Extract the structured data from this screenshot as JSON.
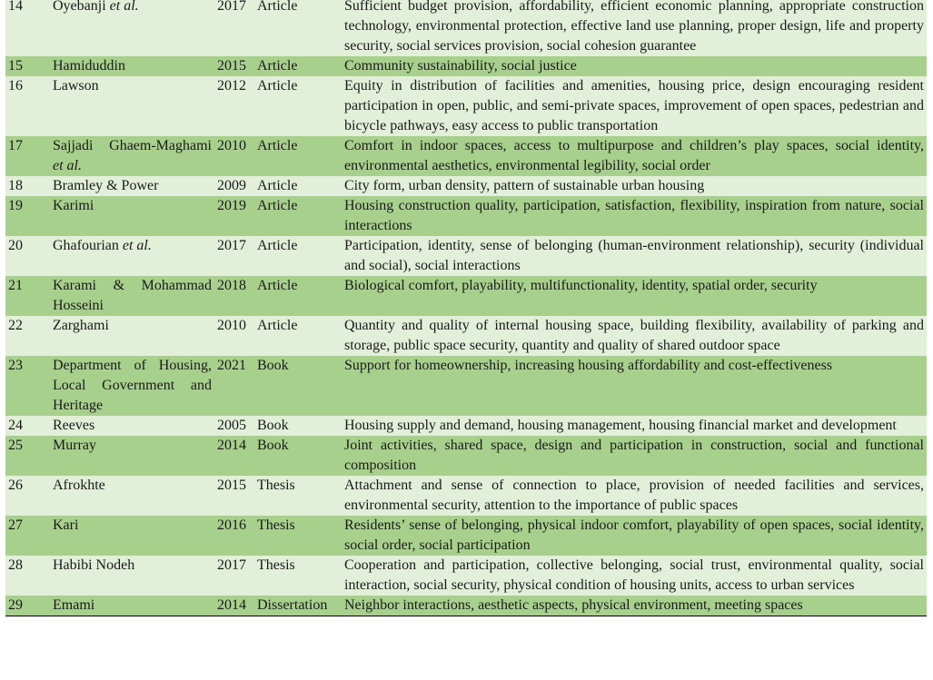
{
  "colors": {
    "row_light": "#e2efd9",
    "row_dark": "#a8d08d"
  },
  "rows": [
    {
      "num": "14",
      "author": "Oyebanji",
      "author_suffix": "et al.",
      "year": "2017",
      "type": "Article",
      "desc": "Sufficient budget provision, affordability, efficient economic planning, appropriate construction technology, environmental protection, effective land use planning, proper design, life and property security, social services provision, social cohesion guarantee"
    },
    {
      "num": "15",
      "author": "Hamiduddin",
      "author_suffix": "",
      "year": "2015",
      "type": "Article",
      "desc": "Community sustainability, social justice"
    },
    {
      "num": "16",
      "author": "Lawson",
      "author_suffix": "",
      "year": "2012",
      "type": "Article",
      "desc": "Equity in distribution of facilities and amenities, housing price, design encouraging resident participation in open, public, and semi-private spaces, improvement of open spaces, pedestrian and bicycle pathways, easy access to public transportation"
    },
    {
      "num": "17",
      "author": "Sajjadi Ghaem-Maghami",
      "author_suffix": "et al.",
      "year": "2010",
      "type": "Article",
      "desc": "Comfort in indoor spaces, access to multipurpose and children’s play spaces, social identity, environmental aesthetics, environmental legibility, social order"
    },
    {
      "num": "18",
      "author": "Bramley & Power",
      "author_suffix": "",
      "year": "2009",
      "type": "Article",
      "desc": "City form, urban density, pattern of sustainable urban housing"
    },
    {
      "num": "19",
      "author": "Karimi",
      "author_suffix": "",
      "year": "2019",
      "type": "Article",
      "desc": "Housing construction quality, participation, satisfaction, flexibility, inspiration from nature, social interactions"
    },
    {
      "num": "20",
      "author": "Ghafourian",
      "author_suffix": "et al.",
      "year": "2017",
      "type": "Article",
      "desc": "Participation, identity, sense of belonging (human-environment relationship), security (individual and social), social interactions"
    },
    {
      "num": "21",
      "author": "Karami & Mohammad Hosseini",
      "author_suffix": "",
      "year": "2018",
      "type": "Article",
      "desc": "Biological comfort, playability, multifunctionality, identity, spatial order, security"
    },
    {
      "num": "22",
      "author": "Zarghami",
      "author_suffix": "",
      "year": "2010",
      "type": "Article",
      "desc": "Quantity and quality of internal housing space, building flexibility, availability of parking and storage, public space security, quantity and quality of shared outdoor space"
    },
    {
      "num": "23",
      "author": "Department of Housing, Local Government and Heritage",
      "author_suffix": "",
      "year": "2021",
      "type": "Book",
      "desc": "Support for homeownership, increasing housing affordability and cost-effectiveness"
    },
    {
      "num": "24",
      "author": "Reeves",
      "author_suffix": "",
      "year": "2005",
      "type": "Book",
      "desc": "Housing supply and demand, housing management, housing financial market and development"
    },
    {
      "num": "25",
      "author": "Murray",
      "author_suffix": "",
      "year": "2014",
      "type": "Book",
      "desc": "Joint activities, shared space, design and participation in construction, social and functional composition"
    },
    {
      "num": "26",
      "author": "Afrokhte",
      "author_suffix": "",
      "year": "2015",
      "type": "Thesis",
      "desc": "Attachment and sense of connection to place, provision of needed facilities and services, environmental security, attention to the importance of public spaces"
    },
    {
      "num": "27",
      "author": "Kari",
      "author_suffix": "",
      "year": "2016",
      "type": "Thesis",
      "desc": "Residents’ sense of belonging, physical indoor comfort, playability of open spaces, social identity, social order, social participation"
    },
    {
      "num": "28",
      "author": "Habibi Nodeh",
      "author_suffix": "",
      "year": "2017",
      "type": "Thesis",
      "desc": "Cooperation and participation, collective belonging, social trust, environmental quality, social interaction, social security, physical condition of housing units, access to urban services"
    },
    {
      "num": "29",
      "author": "Emami",
      "author_suffix": "",
      "year": "2014",
      "type": "Dissertation",
      "desc": "Neighbor interactions, aesthetic aspects, physical environment, meeting spaces"
    }
  ]
}
